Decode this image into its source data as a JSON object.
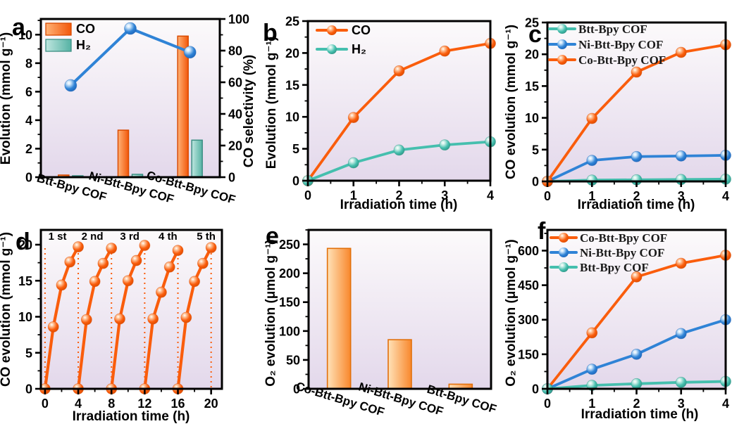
{
  "colors": {
    "orange": "#FA5D0C",
    "orange_dark": "#D94A00",
    "orange_light": "#FFC9A0",
    "teal": "#45BFAE",
    "teal_dark": "#2E9384",
    "teal_light": "#CFF0E9",
    "blue": "#2F83D6",
    "blue_dark": "#1D64B8",
    "blue_light": "#CFE7FB",
    "bar_orange_light": "#FFB377",
    "bar_orange_dark": "#F2570A",
    "bar_orange_stroke": "#D94A00",
    "bar_teal_light": "#BFE6DF",
    "bar_teal_dark": "#55B2A4",
    "bar_teal_stroke": "#3C8F84",
    "bar_peach_light": "#FFE2B8",
    "bar_peach_dark": "#F8872C",
    "bar_peach_stroke": "#E2700A",
    "plot_bg_top": "#FCFAFB",
    "plot_bg_bottom": "#E3D8EB",
    "axis": "#000000"
  },
  "chart_data": [
    {
      "id": "a",
      "panel_label": "a",
      "type": "bar-line-dual-axis",
      "categories": [
        "Btt-Bpy COF",
        "Ni-Btt-Bpy COF",
        "Co-Btt-Bpy COF"
      ],
      "bar_series": [
        {
          "name": "CO",
          "color": "orange",
          "values": [
            0.15,
            3.3,
            9.9
          ]
        },
        {
          "name": "H₂",
          "color": "teal",
          "values": [
            0.1,
            0.2,
            2.6
          ]
        }
      ],
      "line_series": {
        "name": "CO selectivity",
        "color": "blue",
        "values": [
          58,
          94,
          79
        ]
      },
      "left_axis": {
        "label": "Evolution (mmol g⁻¹)",
        "ticks": [
          0,
          2,
          4,
          6,
          8,
          10
        ],
        "lim": [
          0,
          11.1
        ]
      },
      "right_axis": {
        "label": "CO selectivity (%)",
        "ticks": [
          0,
          20,
          40,
          60,
          80,
          100
        ],
        "lim": [
          0,
          100
        ]
      },
      "legend": [
        {
          "label": "CO",
          "color": "orange"
        },
        {
          "label": "H₂",
          "color": "teal"
        }
      ]
    },
    {
      "id": "b",
      "panel_label": "b",
      "type": "line",
      "x": [
        0,
        1,
        2,
        3,
        4
      ],
      "series": [
        {
          "name": "CO",
          "color": "orange",
          "values": [
            0,
            9.9,
            17.2,
            20.3,
            21.5
          ]
        },
        {
          "name": "H₂",
          "color": "teal",
          "values": [
            0,
            2.8,
            4.8,
            5.6,
            6.1
          ]
        }
      ],
      "xlabel": "Irradiation time (h)",
      "ylabel": "Evolution (mmol g⁻¹)",
      "xticks": [
        0,
        1,
        2,
        3,
        4
      ],
      "xlim": [
        0,
        4
      ],
      "yticks": [
        0,
        5,
        10,
        15,
        20,
        25
      ],
      "ylim": [
        0,
        25
      ],
      "legend": [
        {
          "label": "CO",
          "color": "orange"
        },
        {
          "label": "H₂",
          "color": "teal"
        }
      ],
      "legend_serif": false
    },
    {
      "id": "c",
      "panel_label": "c",
      "type": "line",
      "x": [
        0,
        1,
        2,
        3,
        4
      ],
      "series": [
        {
          "name": "Btt-Bpy COF",
          "color": "teal",
          "values": [
            0,
            0.2,
            0.25,
            0.3,
            0.35
          ]
        },
        {
          "name": "Ni-Btt-Bpy COF",
          "color": "blue",
          "values": [
            0,
            3.3,
            3.9,
            4.0,
            4.1
          ]
        },
        {
          "name": "Co-Btt-Bpy COF",
          "color": "orange",
          "values": [
            0,
            9.9,
            17.2,
            20.3,
            21.5
          ]
        }
      ],
      "xlabel": "Irradiation time (h)",
      "ylabel": "CO evolution (mmol g⁻¹)",
      "xticks": [
        0,
        1,
        2,
        3,
        4
      ],
      "xlim": [
        0,
        4
      ],
      "yticks": [
        0,
        5,
        10,
        15,
        20,
        25
      ],
      "ylim": [
        0,
        25
      ],
      "legend": [
        {
          "label": "Btt-Bpy COF",
          "color": "teal"
        },
        {
          "label": "Ni-Btt-Bpy COF",
          "color": "blue"
        },
        {
          "label": "Co-Btt-Bpy COF",
          "color": "orange"
        }
      ],
      "legend_serif": true
    },
    {
      "id": "d",
      "panel_label": "d",
      "type": "cycles",
      "color": "orange",
      "cycle_labels": [
        "1 st",
        "2 nd",
        "3 rd",
        "4 th",
        "5 th"
      ],
      "cycles": [
        {
          "start": 0,
          "values": [
            0,
            8.6,
            14.4,
            17.6,
            19.7
          ]
        },
        {
          "start": 4,
          "values": [
            0,
            9.6,
            14.9,
            17.4,
            19.5
          ]
        },
        {
          "start": 8,
          "values": [
            0,
            9.7,
            15.0,
            17.8,
            19.9
          ]
        },
        {
          "start": 12,
          "values": [
            0,
            9.7,
            13.4,
            16.9,
            19.2
          ]
        },
        {
          "start": 16,
          "values": [
            0,
            9.9,
            14.9,
            17.4,
            19.6
          ]
        }
      ],
      "guide_x": [
        0,
        4,
        8,
        12,
        16,
        20
      ],
      "xlabel": "Irradiation time (h)",
      "ylabel": "CO evolution (mmol g⁻¹)",
      "xticks": [
        0,
        4,
        8,
        12,
        16,
        20
      ],
      "xlim": [
        -0.5,
        21.3
      ],
      "yticks": [
        0,
        5,
        10,
        15,
        20
      ],
      "ylim": [
        0,
        22.05
      ]
    },
    {
      "id": "e",
      "panel_label": "e",
      "type": "bar",
      "categories": [
        "Co-Btt-Bpy COF",
        "Ni-Btt-Bpy COF",
        "Btt-Bpy COF"
      ],
      "values": [
        243,
        85,
        8
      ],
      "ylabel": "O₂ evolution (μmol g⁻¹)",
      "yticks": [
        0,
        50,
        100,
        150,
        200,
        250
      ],
      "ylim": [
        0,
        275
      ]
    },
    {
      "id": "f",
      "panel_label": "f",
      "type": "line",
      "x": [
        0,
        1,
        2,
        3,
        4
      ],
      "series": [
        {
          "name": "Co-Btt-Bpy COF",
          "color": "orange",
          "values": [
            0,
            243,
            486,
            545,
            580
          ]
        },
        {
          "name": "Ni-Btt-Bpy COF",
          "color": "blue",
          "values": [
            0,
            85,
            150,
            240,
            300
          ]
        },
        {
          "name": "Btt-Bpy COF",
          "color": "teal",
          "values": [
            0,
            15,
            22,
            28,
            32
          ]
        }
      ],
      "xlabel": "Irradiation time (h)",
      "ylabel": "O₂ evolution (μmol g⁻¹)",
      "xticks": [
        0,
        1,
        2,
        3,
        4
      ],
      "xlim": [
        0,
        4
      ],
      "yticks": [
        0,
        150,
        300,
        450,
        600
      ],
      "ylim": [
        0,
        690
      ],
      "legend": [
        {
          "label": "Co-Btt-Bpy COF",
          "color": "orange"
        },
        {
          "label": "Ni-Btt-Bpy COF",
          "color": "blue"
        },
        {
          "label": "Btt-Bpy COF",
          "color": "teal"
        }
      ],
      "legend_serif": true
    }
  ]
}
